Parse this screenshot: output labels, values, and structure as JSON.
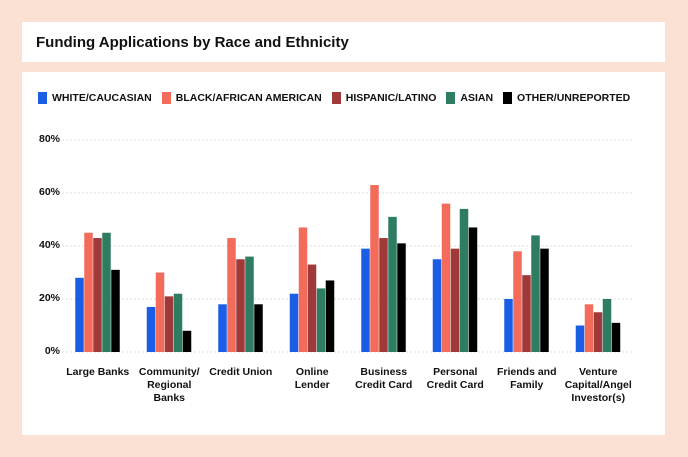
{
  "chart_data": {
    "type": "bar",
    "title": "Funding Applications by Race and Ethnicity",
    "categories": [
      "Large Banks",
      "Community/\nRegional\nBanks",
      "Credit Union",
      "Online\nLender",
      "Business\nCredit Card",
      "Personal\nCredit Card",
      "Friends and\nFamily",
      "Venture\nCapital/Angel\nInvestor(s)"
    ],
    "series": [
      {
        "name": "WHITE/CAUCASIAN",
        "color": "#1a5ee6",
        "values": [
          28,
          17,
          18,
          22,
          39,
          35,
          20,
          10
        ]
      },
      {
        "name": "BLACK/AFRICAN AMERICAN",
        "color": "#f26b5b",
        "values": [
          45,
          30,
          43,
          47,
          63,
          56,
          38,
          18
        ]
      },
      {
        "name": "HISPANIC/LATINO",
        "color": "#a03a3a",
        "values": [
          43,
          21,
          35,
          33,
          43,
          39,
          29,
          15
        ]
      },
      {
        "name": "ASIAN",
        "color": "#2e7d62",
        "values": [
          45,
          22,
          36,
          24,
          51,
          54,
          44,
          20
        ]
      },
      {
        "name": "OTHER/UNREPORTED",
        "color": "#000000",
        "values": [
          31,
          8,
          18,
          27,
          41,
          47,
          39,
          11
        ]
      }
    ],
    "ylim": [
      0,
      80
    ],
    "yticks": [
      {
        "value": 0,
        "label": "0%"
      },
      {
        "value": 20,
        "label": "20%"
      },
      {
        "value": 40,
        "label": "40%"
      },
      {
        "value": 60,
        "label": "60%"
      },
      {
        "value": 80,
        "label": "80%"
      }
    ],
    "grid": true
  }
}
